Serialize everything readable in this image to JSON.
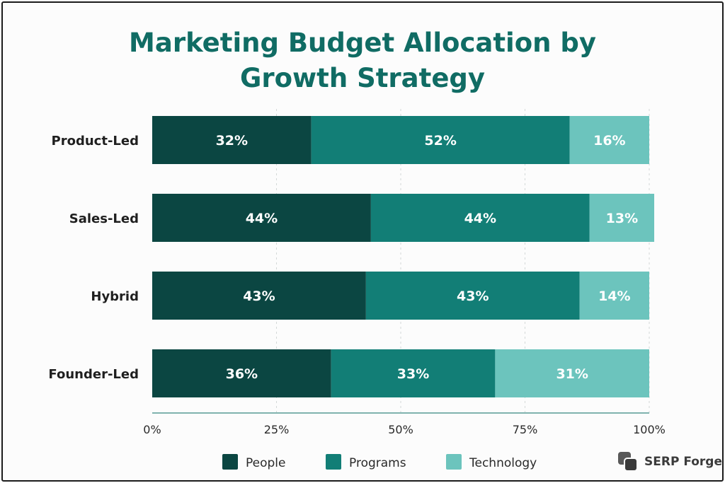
{
  "chart_data": {
    "type": "bar",
    "orientation": "horizontal",
    "stacked": true,
    "title_lines": [
      "Marketing Budget Allocation by",
      "Growth Strategy"
    ],
    "categories": [
      "Product-Led",
      "Sales-Led",
      "Hybrid",
      "Founder-Led"
    ],
    "series": [
      {
        "name": "People",
        "color": "#0b4642",
        "values": [
          32,
          44,
          43,
          36
        ],
        "labels": [
          "32%",
          "44%",
          "43%",
          "36%"
        ]
      },
      {
        "name": "Programs",
        "color": "#127e76",
        "values": [
          52,
          44,
          43,
          33
        ],
        "labels": [
          "52%",
          "44%",
          "43%",
          "33%"
        ]
      },
      {
        "name": "Technology",
        "color": "#6cc4bd",
        "values": [
          16,
          13,
          14,
          31
        ],
        "labels": [
          "16%",
          "13%",
          "14%",
          "31%"
        ]
      }
    ],
    "xlim": [
      0,
      100
    ],
    "x_ticks": [
      "0%",
      "25%",
      "50%",
      "75%",
      "100%"
    ],
    "grid": "vertical dashed",
    "legend_position": "bottom"
  },
  "brand": {
    "label": "SERP Forge",
    "icon": "serp-forge-logo-icon"
  }
}
